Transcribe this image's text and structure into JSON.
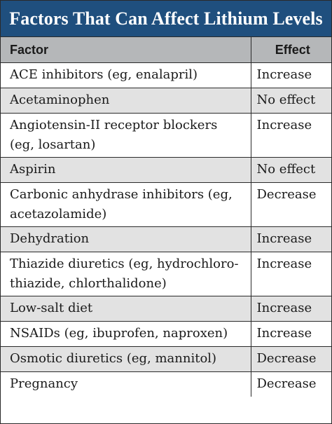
{
  "title": "Factors That Can Affect Lithium Levels",
  "header": {
    "factor": "Factor",
    "effect": "Effect"
  },
  "rows": [
    {
      "factor": "ACE inhibitors (eg, enalapril)",
      "effect": "Increase"
    },
    {
      "factor": "Acetaminophen",
      "effect": "No effect"
    },
    {
      "factor": "Angiotensin-II receptor blockers (eg, losartan)",
      "effect": "Increase"
    },
    {
      "factor": "Aspirin",
      "effect": "No effect"
    },
    {
      "factor": "Carbonic anhydrase inhibitors (eg, acetazolamide)",
      "effect": "Decrease"
    },
    {
      "factor": "Dehydration",
      "effect": "Increase"
    },
    {
      "factor": "Thiazide diuretics (eg, hydrochloro-thiazide, chlorthalidone)",
      "effect": "Increase"
    },
    {
      "factor": "Low-salt diet",
      "effect": "Increase"
    },
    {
      "factor": "NSAIDs (eg, ibuprofen, naproxen)",
      "effect": "Increase"
    },
    {
      "factor": "Osmotic diuretics (eg, mannitol)",
      "effect": "Decrease"
    },
    {
      "factor": "Pregnancy",
      "effect": "Decrease"
    }
  ]
}
